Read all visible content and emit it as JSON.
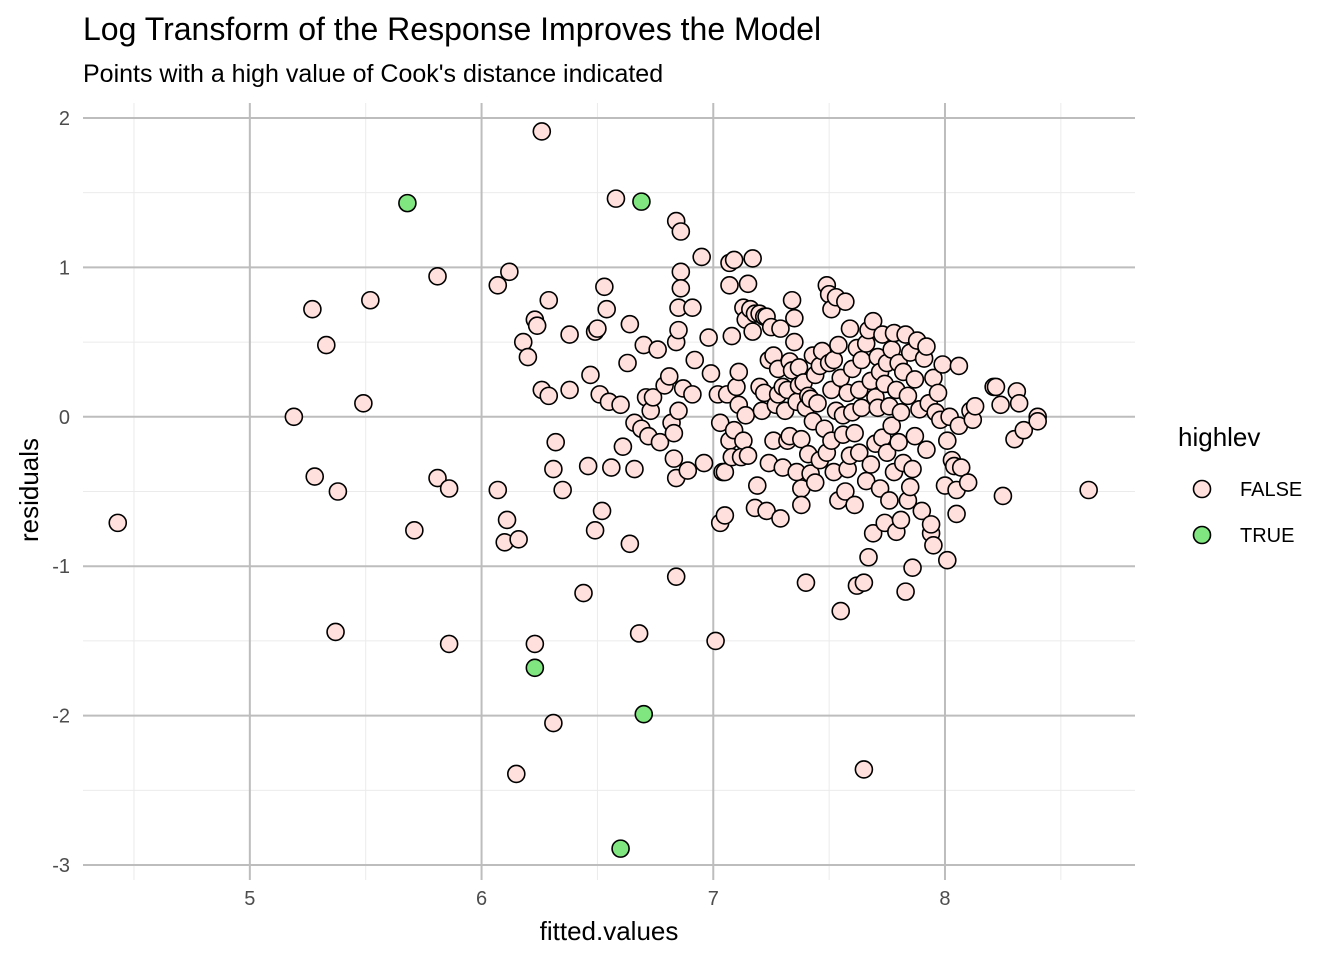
{
  "chart_data": {
    "type": "scatter",
    "title": "Log Transform of the Response Improves the Model",
    "subtitle": "Points with a high value of Cook's distance indicated",
    "xlabel": "fitted.values",
    "ylabel": "residuals",
    "xlim": [
      4.28,
      8.82
    ],
    "ylim": [
      -3.1,
      2.1
    ],
    "x_ticks": [
      5,
      6,
      7,
      8
    ],
    "y_ticks": [
      -3,
      -2,
      -1,
      0,
      1,
      2
    ],
    "x_tick_labels": [
      "5",
      "6",
      "7",
      "8"
    ],
    "y_tick_labels": [
      "-3",
      "-2",
      "-1",
      "0",
      "1",
      "2"
    ],
    "grid": true,
    "legend": {
      "title": "highlev",
      "position": "right",
      "entries": [
        {
          "label": "FALSE",
          "color": "#ffe0dc"
        },
        {
          "label": "TRUE",
          "color": "#80e680"
        }
      ]
    },
    "series": [
      {
        "name": "FALSE",
        "color": "#ffe0dc",
        "points": [
          [
            4.43,
            -0.71
          ],
          [
            5.19,
            0.0
          ],
          [
            5.27,
            0.72
          ],
          [
            5.28,
            -0.4
          ],
          [
            5.33,
            0.48
          ],
          [
            5.37,
            -1.44
          ],
          [
            5.38,
            -0.5
          ],
          [
            5.49,
            0.09
          ],
          [
            5.52,
            0.78
          ],
          [
            5.71,
            -0.76
          ],
          [
            5.81,
            0.94
          ],
          [
            5.81,
            -0.41
          ],
          [
            5.86,
            -1.52
          ],
          [
            5.86,
            -0.48
          ],
          [
            6.07,
            0.88
          ],
          [
            6.07,
            -0.49
          ],
          [
            6.1,
            -0.84
          ],
          [
            6.11,
            -0.69
          ],
          [
            6.12,
            0.97
          ],
          [
            6.15,
            -2.39
          ],
          [
            6.16,
            -0.82
          ],
          [
            6.18,
            0.5
          ],
          [
            6.2,
            0.4
          ],
          [
            6.23,
            0.65
          ],
          [
            6.23,
            -1.52
          ],
          [
            6.24,
            0.61
          ],
          [
            6.26,
            0.18
          ],
          [
            6.26,
            1.91
          ],
          [
            6.29,
            0.78
          ],
          [
            6.29,
            0.14
          ],
          [
            6.31,
            -0.35
          ],
          [
            6.31,
            -2.05
          ],
          [
            6.32,
            -0.17
          ],
          [
            6.35,
            -0.49
          ],
          [
            6.38,
            0.55
          ],
          [
            6.38,
            0.18
          ],
          [
            6.44,
            -1.18
          ],
          [
            6.46,
            -0.33
          ],
          [
            6.47,
            0.28
          ],
          [
            6.49,
            0.57
          ],
          [
            6.49,
            -0.76
          ],
          [
            6.5,
            0.59
          ],
          [
            6.51,
            0.15
          ],
          [
            6.52,
            -0.63
          ],
          [
            6.53,
            0.87
          ],
          [
            6.54,
            0.72
          ],
          [
            6.55,
            0.1
          ],
          [
            6.56,
            -0.34
          ],
          [
            6.58,
            1.46
          ],
          [
            6.6,
            0.08
          ],
          [
            6.61,
            -0.2
          ],
          [
            6.63,
            0.36
          ],
          [
            6.64,
            0.62
          ],
          [
            6.64,
            -0.85
          ],
          [
            6.66,
            -0.35
          ],
          [
            6.66,
            -0.04
          ],
          [
            6.68,
            -1.45
          ],
          [
            6.69,
            -0.08
          ],
          [
            6.7,
            0.48
          ],
          [
            6.71,
            0.13
          ],
          [
            6.72,
            -0.13
          ],
          [
            6.73,
            0.04
          ],
          [
            6.74,
            0.13
          ],
          [
            6.76,
            0.45
          ],
          [
            6.77,
            -0.17
          ],
          [
            6.79,
            0.21
          ],
          [
            6.81,
            0.27
          ],
          [
            6.82,
            -0.04
          ],
          [
            6.83,
            -0.28
          ],
          [
            6.83,
            -0.11
          ],
          [
            6.84,
            0.5
          ],
          [
            6.84,
            1.31
          ],
          [
            6.84,
            -1.07
          ],
          [
            6.84,
            -0.41
          ],
          [
            6.85,
            0.04
          ],
          [
            6.85,
            0.73
          ],
          [
            6.85,
            0.58
          ],
          [
            6.86,
            1.24
          ],
          [
            6.86,
            0.97
          ],
          [
            6.86,
            0.86
          ],
          [
            6.87,
            0.19
          ],
          [
            6.89,
            -0.36
          ],
          [
            6.91,
            0.15
          ],
          [
            6.91,
            0.73
          ],
          [
            6.92,
            0.38
          ],
          [
            6.95,
            1.07
          ],
          [
            6.96,
            -0.31
          ],
          [
            6.98,
            0.53
          ],
          [
            6.99,
            0.29
          ],
          [
            7.01,
            -1.5
          ],
          [
            7.02,
            0.15
          ],
          [
            7.03,
            -0.04
          ],
          [
            7.03,
            -0.71
          ],
          [
            7.04,
            -0.37
          ],
          [
            7.05,
            -0.37
          ],
          [
            7.05,
            -0.66
          ],
          [
            7.06,
            0.15
          ],
          [
            7.07,
            0.88
          ],
          [
            7.07,
            1.03
          ],
          [
            7.07,
            -0.16
          ],
          [
            7.08,
            -0.27
          ],
          [
            7.08,
            0.54
          ],
          [
            7.09,
            -0.09
          ],
          [
            7.09,
            1.05
          ],
          [
            7.1,
            0.2
          ],
          [
            7.11,
            0.3
          ],
          [
            7.11,
            0.08
          ],
          [
            7.12,
            -0.27
          ],
          [
            7.13,
            0.73
          ],
          [
            7.13,
            -0.16
          ],
          [
            7.14,
            0.01
          ],
          [
            7.14,
            0.65
          ],
          [
            7.15,
            0.89
          ],
          [
            7.15,
            -0.26
          ],
          [
            7.16,
            0.72
          ],
          [
            7.17,
            1.06
          ],
          [
            7.17,
            0.57
          ],
          [
            7.18,
            0.69
          ],
          [
            7.18,
            -0.61
          ],
          [
            7.19,
            -0.46
          ],
          [
            7.2,
            0.2
          ],
          [
            7.2,
            0.69
          ],
          [
            7.21,
            0.04
          ],
          [
            7.22,
            0.67
          ],
          [
            7.22,
            0.16
          ],
          [
            7.23,
            0.67
          ],
          [
            7.23,
            -0.63
          ],
          [
            7.24,
            -0.31
          ],
          [
            7.24,
            0.38
          ],
          [
            7.25,
            0.6
          ],
          [
            7.26,
            -0.16
          ],
          [
            7.26,
            0.41
          ],
          [
            7.27,
            0.08
          ],
          [
            7.28,
            0.32
          ],
          [
            7.28,
            0.15
          ],
          [
            7.29,
            0.59
          ],
          [
            7.29,
            -0.68
          ],
          [
            7.3,
            -0.34
          ],
          [
            7.3,
            0.2
          ],
          [
            7.31,
            0.04
          ],
          [
            7.32,
            -0.16
          ],
          [
            7.32,
            0.18
          ],
          [
            7.33,
            0.37
          ],
          [
            7.33,
            -0.13
          ],
          [
            7.34,
            0.78
          ],
          [
            7.34,
            0.31
          ],
          [
            7.35,
            0.66
          ],
          [
            7.35,
            0.5
          ],
          [
            7.36,
            0.1
          ],
          [
            7.36,
            -0.37
          ],
          [
            7.37,
            0.33
          ],
          [
            7.37,
            0.21
          ],
          [
            7.38,
            -0.48
          ],
          [
            7.38,
            -0.15
          ],
          [
            7.38,
            -0.59
          ],
          [
            7.39,
            0.23
          ],
          [
            7.4,
            -1.11
          ],
          [
            7.4,
            0.06
          ],
          [
            7.41,
            0.14
          ],
          [
            7.41,
            -0.25
          ],
          [
            7.42,
            0.12
          ],
          [
            7.42,
            -0.38
          ],
          [
            7.43,
            0.41
          ],
          [
            7.43,
            -0.03
          ],
          [
            7.44,
            0.28
          ],
          [
            7.44,
            -0.44
          ],
          [
            7.45,
            0.09
          ],
          [
            7.46,
            0.34
          ],
          [
            7.46,
            -0.29
          ],
          [
            7.47,
            0.44
          ],
          [
            7.48,
            -0.08
          ],
          [
            7.49,
            0.88
          ],
          [
            7.49,
            -0.24
          ],
          [
            7.5,
            0.36
          ],
          [
            7.5,
            0.82
          ],
          [
            7.51,
            0.18
          ],
          [
            7.51,
            0.72
          ],
          [
            7.51,
            -0.16
          ],
          [
            7.52,
            0.38
          ],
          [
            7.52,
            -0.37
          ],
          [
            7.53,
            0.8
          ],
          [
            7.53,
            0.04
          ],
          [
            7.54,
            0.48
          ],
          [
            7.54,
            -0.56
          ],
          [
            7.55,
            -1.3
          ],
          [
            7.55,
            0.26
          ],
          [
            7.56,
            -0.12
          ],
          [
            7.56,
            0.01
          ],
          [
            7.57,
            -0.5
          ],
          [
            7.57,
            0.77
          ],
          [
            7.58,
            0.16
          ],
          [
            7.58,
            -0.35
          ],
          [
            7.59,
            0.59
          ],
          [
            7.59,
            -0.26
          ],
          [
            7.6,
            0.03
          ],
          [
            7.6,
            0.32
          ],
          [
            7.61,
            -0.59
          ],
          [
            7.61,
            -0.11
          ],
          [
            7.62,
            0.46
          ],
          [
            7.62,
            -1.13
          ],
          [
            7.63,
            0.18
          ],
          [
            7.63,
            -0.24
          ],
          [
            7.64,
            0.38
          ],
          [
            7.64,
            0.06
          ],
          [
            7.65,
            -2.36
          ],
          [
            7.65,
            -1.11
          ],
          [
            7.66,
            0.49
          ],
          [
            7.66,
            -0.43
          ],
          [
            7.67,
            -0.94
          ],
          [
            7.67,
            0.58
          ],
          [
            7.68,
            0.24
          ],
          [
            7.68,
            -0.32
          ],
          [
            7.69,
            0.64
          ],
          [
            7.69,
            -0.78
          ],
          [
            7.7,
            0.13
          ],
          [
            7.7,
            -0.18
          ],
          [
            7.71,
            0.4
          ],
          [
            7.71,
            0.06
          ],
          [
            7.72,
            -0.48
          ],
          [
            7.72,
            0.3
          ],
          [
            7.73,
            -0.14
          ],
          [
            7.73,
            0.55
          ],
          [
            7.74,
            -0.71
          ],
          [
            7.74,
            0.22
          ],
          [
            7.75,
            0.36
          ],
          [
            7.75,
            -0.24
          ],
          [
            7.76,
            0.07
          ],
          [
            7.76,
            -0.56
          ],
          [
            7.77,
            0.45
          ],
          [
            7.77,
            -0.06
          ],
          [
            7.78,
            0.56
          ],
          [
            7.78,
            -0.37
          ],
          [
            7.79,
            -0.77
          ],
          [
            7.79,
            0.18
          ],
          [
            7.8,
            -0.17
          ],
          [
            7.8,
            0.36
          ],
          [
            7.81,
            0.03
          ],
          [
            7.81,
            -0.69
          ],
          [
            7.82,
            0.3
          ],
          [
            7.82,
            -0.31
          ],
          [
            7.83,
            0.55
          ],
          [
            7.83,
            -1.17
          ],
          [
            7.84,
            -0.56
          ],
          [
            7.84,
            0.14
          ],
          [
            7.85,
            -0.47
          ],
          [
            7.85,
            0.43
          ],
          [
            7.86,
            -1.01
          ],
          [
            7.86,
            -0.35
          ],
          [
            7.87,
            0.25
          ],
          [
            7.87,
            -0.13
          ],
          [
            7.88,
            0.51
          ],
          [
            7.89,
            0.05
          ],
          [
            7.9,
            -0.63
          ],
          [
            7.91,
            0.39
          ],
          [
            7.92,
            -0.22
          ],
          [
            7.92,
            0.47
          ],
          [
            7.93,
            0.09
          ],
          [
            7.94,
            -0.78
          ],
          [
            7.94,
            -0.72
          ],
          [
            7.95,
            -0.86
          ],
          [
            7.95,
            0.26
          ],
          [
            7.96,
            0.03
          ],
          [
            7.97,
            0.16
          ],
          [
            7.98,
            -0.02
          ],
          [
            7.99,
            0.35
          ],
          [
            8.0,
            -0.46
          ],
          [
            8.01,
            -0.96
          ],
          [
            8.01,
            -0.16
          ],
          [
            8.02,
            0.0
          ],
          [
            8.03,
            -0.29
          ],
          [
            8.04,
            -0.33
          ],
          [
            8.05,
            -0.65
          ],
          [
            8.05,
            -0.49
          ],
          [
            8.06,
            0.34
          ],
          [
            8.06,
            -0.06
          ],
          [
            8.07,
            -0.34
          ],
          [
            8.1,
            -0.44
          ],
          [
            8.11,
            0.04
          ],
          [
            8.12,
            -0.02
          ],
          [
            8.13,
            0.07
          ],
          [
            8.21,
            0.2
          ],
          [
            8.22,
            0.2
          ],
          [
            8.24,
            0.08
          ],
          [
            8.25,
            -0.53
          ],
          [
            8.3,
            -0.15
          ],
          [
            8.31,
            0.17
          ],
          [
            8.32,
            0.09
          ],
          [
            8.34,
            -0.09
          ],
          [
            8.4,
            0.0
          ],
          [
            8.4,
            -0.03
          ],
          [
            8.62,
            -0.49
          ]
        ]
      },
      {
        "name": "TRUE",
        "color": "#80e680",
        "points": [
          [
            5.68,
            1.43
          ],
          [
            6.23,
            -1.68
          ],
          [
            6.6,
            -2.89
          ],
          [
            6.69,
            1.44
          ],
          [
            6.7,
            -1.99
          ]
        ]
      }
    ]
  }
}
